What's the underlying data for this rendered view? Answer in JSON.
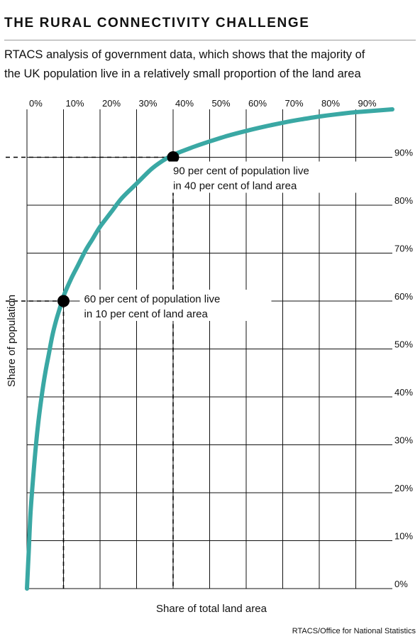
{
  "title": "THE RURAL CONNECTIVITY CHALLENGE",
  "subtitle_lines": [
    "RTACS analysis of government data, which shows that the majority of",
    "the UK population live in a relatively small proportion of the land area"
  ],
  "source": "RTACS/Office for National Statistics",
  "colors": {
    "curve": "#3aa8a4",
    "grid": "#111111",
    "point": "#000000"
  },
  "chart_data": {
    "type": "line",
    "xlabel": "Share of total land area",
    "ylabel": "Share of population",
    "x_tick_labels": [
      "0%",
      "10%",
      "20%",
      "30%",
      "40%",
      "50%",
      "60%",
      "70%",
      "80%",
      "90%"
    ],
    "y_tick_labels": [
      "0%",
      "10%",
      "20%",
      "30%",
      "40%",
      "50%",
      "60%",
      "70%",
      "80%",
      "90%"
    ],
    "x_tick_values": [
      0,
      10,
      20,
      30,
      40,
      50,
      60,
      70,
      80,
      90
    ],
    "y_tick_values": [
      0,
      10,
      20,
      30,
      40,
      50,
      60,
      70,
      80,
      90
    ],
    "xlim": [
      0,
      100
    ],
    "ylim": [
      0,
      100
    ],
    "grid": true,
    "series": [
      {
        "x": [
          0,
          0.5,
          1,
          2,
          3,
          4,
          5,
          6,
          7,
          8,
          9,
          10,
          12,
          14,
          16,
          18,
          20,
          23,
          26,
          30,
          34,
          37,
          40,
          45,
          50,
          55,
          60,
          65,
          70,
          75,
          80,
          85,
          90,
          95,
          100
        ],
        "y": [
          0,
          8,
          16,
          26,
          34,
          40,
          45,
          49,
          53,
          56,
          58.5,
          61,
          64.5,
          67.5,
          70.5,
          73,
          75.5,
          78.5,
          81.5,
          84.5,
          87.5,
          89.2,
          90.5,
          92,
          93.3,
          94.5,
          95.5,
          96.4,
          97.2,
          97.9,
          98.5,
          99,
          99.4,
          99.7,
          100
        ]
      }
    ],
    "highlights": [
      {
        "x": 10,
        "y": 60,
        "label_lines": [
          "60 per cent of population live",
          "in 10 per cent of land area"
        ]
      },
      {
        "x": 40,
        "y": 90,
        "label_lines": [
          "90 per cent of population live",
          "in 40 per cent of land area"
        ]
      }
    ]
  }
}
